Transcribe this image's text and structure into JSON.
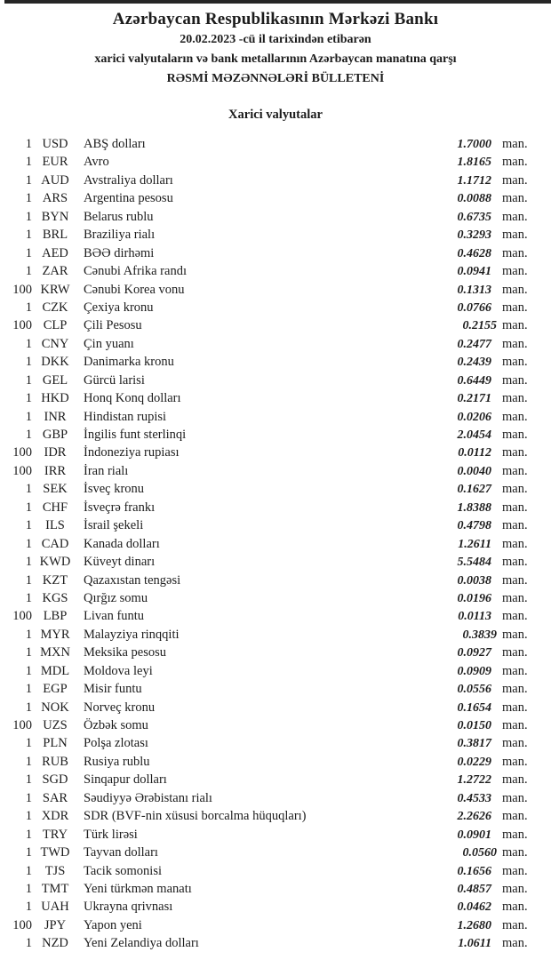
{
  "page": {
    "title": "Azərbaycan Respublikasının Mərkəzi Bankı",
    "date_line": "20.02.2023 -cü il tarixindən etibarən",
    "subtitle_line": "xarici valyutaların və bank metallarının Azərbaycan manatına qarşı",
    "bulletin_line": "RƏSMİ MƏZƏNNƏLƏRİ BÜLLETENİ",
    "section_title": "Xarici valyutalar",
    "unit_label": "man.",
    "colors": {
      "text": "#1c1c1c",
      "top_rule": "#262626",
      "background": "#ffffff"
    }
  },
  "rates": [
    {
      "qty": "1",
      "code": "USD",
      "name": "ABŞ dolları",
      "rate": "1.7000"
    },
    {
      "qty": "1",
      "code": "EUR",
      "name": "Avro",
      "rate": "1.8165"
    },
    {
      "qty": "1",
      "code": "AUD",
      "name": "Avstraliya dolları",
      "rate": "1.1712"
    },
    {
      "qty": "1",
      "code": "ARS",
      "name": "Argentina pesosu",
      "rate": "0.0088"
    },
    {
      "qty": "1",
      "code": "BYN",
      "name": "Belarus rublu",
      "rate": "0.6735"
    },
    {
      "qty": "1",
      "code": "BRL",
      "name": "Braziliya rialı",
      "rate": "0.3293"
    },
    {
      "qty": "1",
      "code": "AED",
      "name": "BƏƏ dirhəmi",
      "rate": "0.4628"
    },
    {
      "qty": "1",
      "code": "ZAR",
      "name": "Cənubi Afrika randı",
      "rate": "0.0941"
    },
    {
      "qty": "100",
      "code": "KRW",
      "name": "Cənubi Korea vonu",
      "rate": "0.1313"
    },
    {
      "qty": "1",
      "code": "CZK",
      "name": "Çexiya kronu",
      "rate": "0.0766"
    },
    {
      "qty": "100",
      "code": "CLP",
      "name": "Çili Pesosu",
      "rate": "0.2155",
      "tight": true
    },
    {
      "qty": "1",
      "code": "CNY",
      "name": "Çin yuanı",
      "rate": "0.2477"
    },
    {
      "qty": "1",
      "code": "DKK",
      "name": "Danimarka kronu",
      "rate": "0.2439"
    },
    {
      "qty": "1",
      "code": "GEL",
      "name": "Gürcü larisi",
      "rate": "0.6449"
    },
    {
      "qty": "1",
      "code": "HKD",
      "name": "Honq Konq dolları",
      "rate": "0.2171"
    },
    {
      "qty": "1",
      "code": "INR",
      "name": "Hindistan rupisi",
      "rate": "0.0206"
    },
    {
      "qty": "1",
      "code": "GBP",
      "name": "İngilis funt sterlinqi",
      "rate": "2.0454"
    },
    {
      "qty": "100",
      "code": "IDR",
      "name": "İndoneziya rupiası",
      "rate": "0.0112"
    },
    {
      "qty": "100",
      "code": "IRR",
      "name": "İran rialı",
      "rate": "0.0040"
    },
    {
      "qty": "1",
      "code": "SEK",
      "name": "İsveç kronu",
      "rate": "0.1627"
    },
    {
      "qty": "1",
      "code": "CHF",
      "name": "İsveçrə frankı",
      "rate": "1.8388"
    },
    {
      "qty": "1",
      "code": "ILS",
      "name": "İsrail şekeli",
      "rate": "0.4798"
    },
    {
      "qty": "1",
      "code": "CAD",
      "name": "Kanada dolları",
      "rate": "1.2611"
    },
    {
      "qty": "1",
      "code": "KWD",
      "name": "Küveyt dinarı",
      "rate": "5.5484"
    },
    {
      "qty": "1",
      "code": "KZT",
      "name": "Qazaxıstan tengəsi",
      "rate": "0.0038"
    },
    {
      "qty": "1",
      "code": "KGS",
      "name": "Qırğız somu",
      "rate": "0.0196"
    },
    {
      "qty": "100",
      "code": "LBP",
      "name": "Livan funtu",
      "rate": "0.0113"
    },
    {
      "qty": "1",
      "code": "MYR",
      "name": "Malayziya rinqqiti",
      "rate": "0.3839",
      "tight": true
    },
    {
      "qty": "1",
      "code": "MXN",
      "name": "Meksika pesosu",
      "rate": "0.0927"
    },
    {
      "qty": "1",
      "code": "MDL",
      "name": "Moldova leyi",
      "rate": "0.0909"
    },
    {
      "qty": "1",
      "code": "EGP",
      "name": "Misir funtu",
      "rate": "0.0556"
    },
    {
      "qty": "1",
      "code": "NOK",
      "name": "Norveç kronu",
      "rate": "0.1654"
    },
    {
      "qty": "100",
      "code": "UZS",
      "name": "Özbək somu",
      "rate": "0.0150"
    },
    {
      "qty": "1",
      "code": "PLN",
      "name": "Polşa zlotası",
      "rate": "0.3817"
    },
    {
      "qty": "1",
      "code": "RUB",
      "name": "Rusiya rublu",
      "rate": "0.0229"
    },
    {
      "qty": "1",
      "code": "SGD",
      "name": "Sinqapur dolları",
      "rate": "1.2722"
    },
    {
      "qty": "1",
      "code": "SAR",
      "name": "Səudiyyə Ərəbistanı rialı",
      "rate": "0.4533"
    },
    {
      "qty": "1",
      "code": "XDR",
      "name": "SDR (BVF-nin xüsusi borcalma hüquqları)",
      "rate": "2.2626"
    },
    {
      "qty": "1",
      "code": "TRY",
      "name": "Türk lirəsi",
      "rate": "0.0901"
    },
    {
      "qty": "1",
      "code": "TWD",
      "name": "Tayvan dolları",
      "rate": "0.0560",
      "tight": true
    },
    {
      "qty": "1",
      "code": "TJS",
      "name": "Tacik somonisi",
      "rate": "0.1656"
    },
    {
      "qty": "1",
      "code": "TMT",
      "name": "Yeni türkmən manatı",
      "rate": "0.4857"
    },
    {
      "qty": "1",
      "code": "UAH",
      "name": "Ukrayna qrivnası",
      "rate": "0.0462"
    },
    {
      "qty": "100",
      "code": "JPY",
      "name": "Yapon yeni",
      "rate": "1.2680"
    },
    {
      "qty": "1",
      "code": "NZD",
      "name": "Yeni Zelandiya dolları",
      "rate": "1.0611"
    }
  ]
}
